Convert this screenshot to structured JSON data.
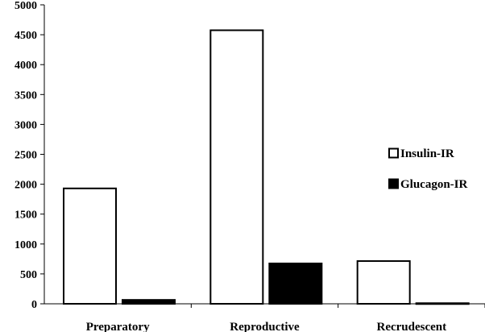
{
  "chart_data": {
    "type": "bar",
    "title": "",
    "xlabel": "",
    "ylabel": "",
    "categories": [
      "Preparatory",
      "Reproductive",
      "Recrudescent"
    ],
    "series": [
      {
        "name": "Insulin-IR",
        "values": [
          1930,
          4575,
          715
        ],
        "fill": "#ffffff",
        "stroke": "#000000"
      },
      {
        "name": "Glucagon-IR",
        "values": [
          65,
          675,
          10
        ],
        "fill": "#000000",
        "stroke": "#000000"
      }
    ],
    "ylim": [
      0,
      5000
    ],
    "yticks": [
      "0",
      "500",
      "1000",
      "1500",
      "2000",
      "2500",
      "3000",
      "3500",
      "4000",
      "4500",
      "5000"
    ],
    "grid": false,
    "legend_position": "right"
  }
}
